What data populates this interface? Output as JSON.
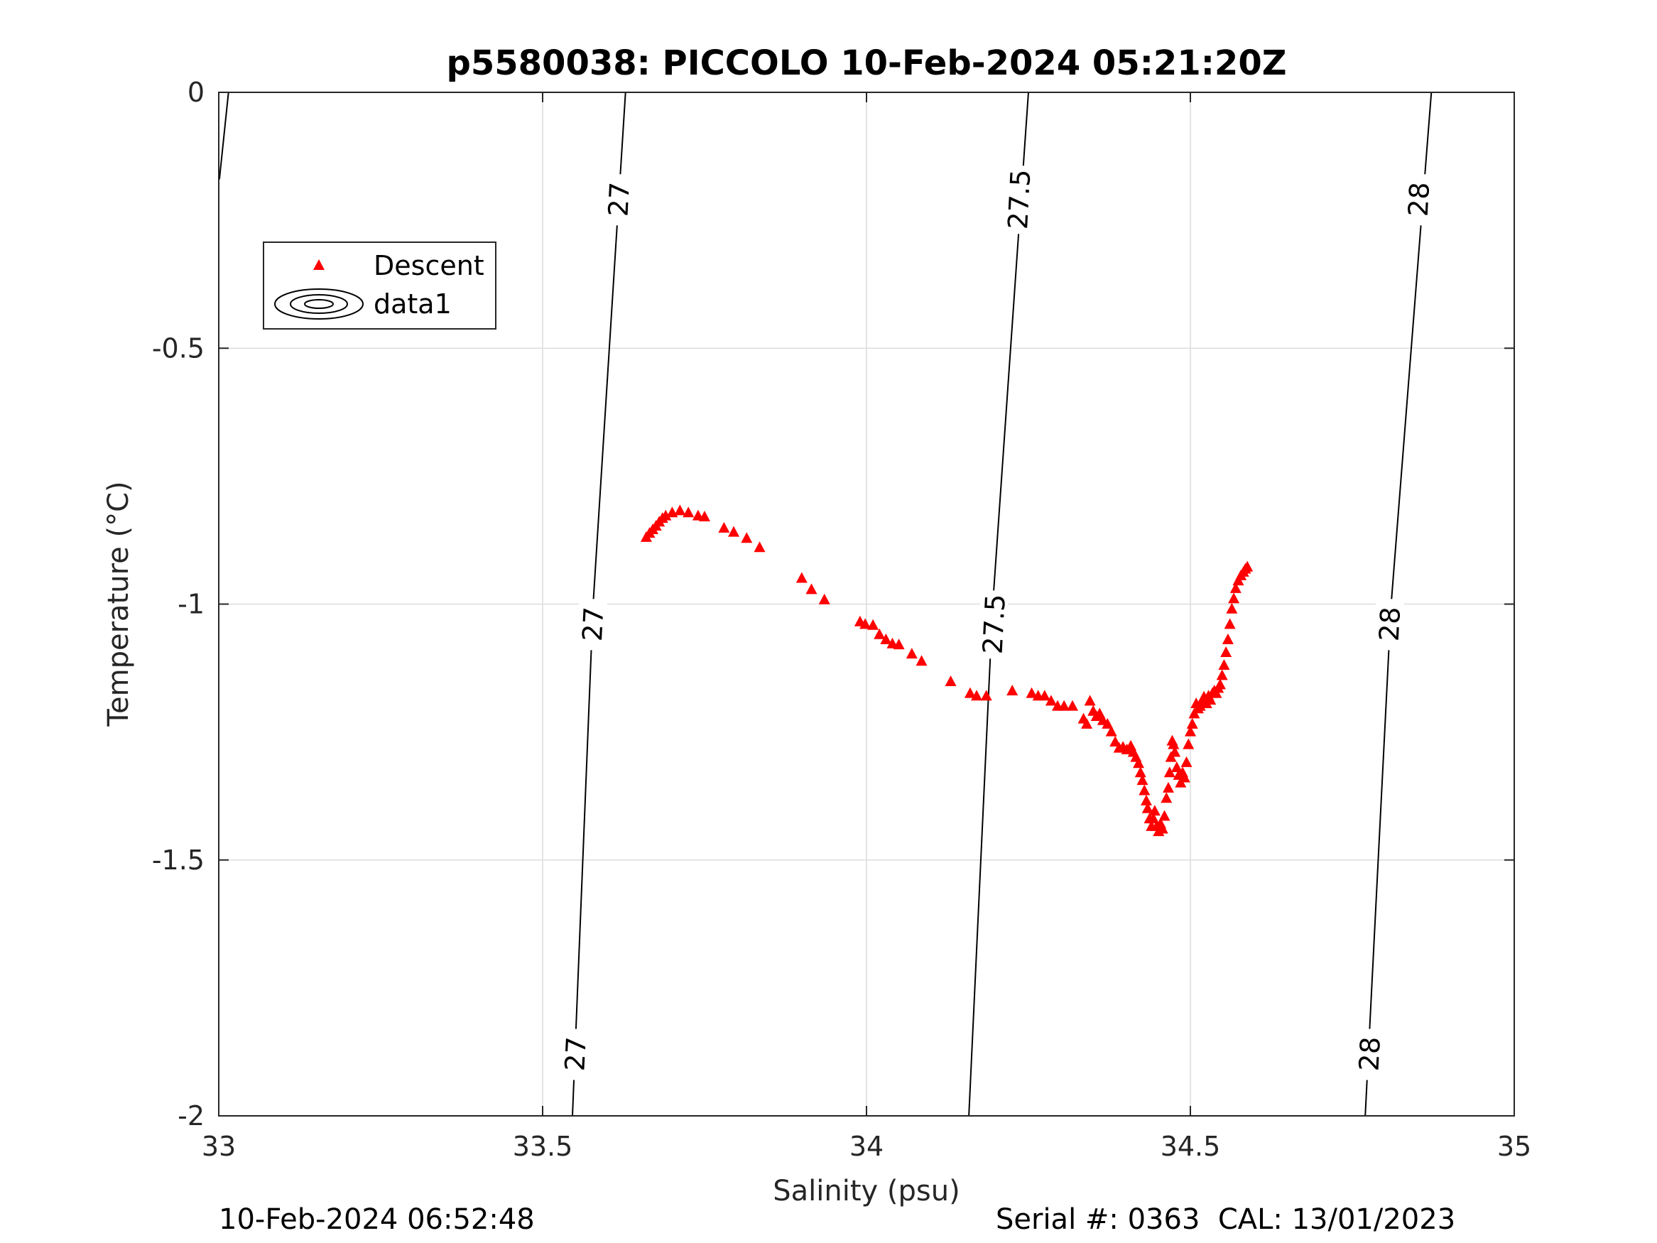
{
  "chart_data": {
    "type": "scatter",
    "title": "p5580038: PICCOLO 10-Feb-2024 05:21:20Z",
    "xlabel": "Salinity (psu)",
    "ylabel": "Temperature (°C)",
    "xlim": [
      33,
      35
    ],
    "ylim": [
      -2,
      0
    ],
    "xticks": [
      33,
      33.5,
      34,
      34.5,
      35
    ],
    "xtick_labels": [
      "33",
      "33.5",
      "34",
      "34.5",
      "35"
    ],
    "yticks": [
      0,
      -0.5,
      -1,
      -1.5,
      -2
    ],
    "ytick_labels": [
      "0",
      "-0.5",
      "-1",
      "-1.5",
      "-2"
    ],
    "grid": true,
    "legend": {
      "placement": "top-left",
      "entries": [
        {
          "label": "Descent",
          "marker": "triangle",
          "color": "#ff0000"
        },
        {
          "label": "data1",
          "marker": "contour-icon",
          "color": "#000000"
        }
      ]
    },
    "series": [
      {
        "name": "Descent",
        "marker": "triangle",
        "color": "#ff0000",
        "points": [
          [
            33.66,
            -0.87
          ],
          [
            33.665,
            -0.862
          ],
          [
            33.67,
            -0.855
          ],
          [
            33.675,
            -0.848
          ],
          [
            33.68,
            -0.84
          ],
          [
            33.685,
            -0.833
          ],
          [
            33.69,
            -0.828
          ],
          [
            33.7,
            -0.822
          ],
          [
            33.712,
            -0.818
          ],
          [
            33.725,
            -0.822
          ],
          [
            33.74,
            -0.828
          ],
          [
            33.75,
            -0.83
          ],
          [
            33.78,
            -0.852
          ],
          [
            33.795,
            -0.86
          ],
          [
            33.815,
            -0.872
          ],
          [
            33.835,
            -0.89
          ],
          [
            33.9,
            -0.95
          ],
          [
            33.915,
            -0.972
          ],
          [
            33.935,
            -0.992
          ],
          [
            33.99,
            -1.035
          ],
          [
            33.998,
            -1.04
          ],
          [
            34.01,
            -1.042
          ],
          [
            34.02,
            -1.06
          ],
          [
            34.03,
            -1.07
          ],
          [
            34.04,
            -1.078
          ],
          [
            34.05,
            -1.08
          ],
          [
            34.07,
            -1.098
          ],
          [
            34.085,
            -1.112
          ],
          [
            34.13,
            -1.152
          ],
          [
            34.16,
            -1.175
          ],
          [
            34.17,
            -1.18
          ],
          [
            34.185,
            -1.18
          ],
          [
            34.225,
            -1.17
          ],
          [
            34.255,
            -1.175
          ],
          [
            34.265,
            -1.18
          ],
          [
            34.275,
            -1.18
          ],
          [
            34.285,
            -1.19
          ],
          [
            34.295,
            -1.2
          ],
          [
            34.305,
            -1.2
          ],
          [
            34.318,
            -1.2
          ],
          [
            34.335,
            -1.225
          ],
          [
            34.34,
            -1.235
          ],
          [
            34.345,
            -1.19
          ],
          [
            34.35,
            -1.21
          ],
          [
            34.355,
            -1.22
          ],
          [
            34.36,
            -1.215
          ],
          [
            34.365,
            -1.228
          ],
          [
            34.372,
            -1.235
          ],
          [
            34.378,
            -1.25
          ],
          [
            34.384,
            -1.27
          ],
          [
            34.39,
            -1.282
          ],
          [
            34.396,
            -1.28
          ],
          [
            34.402,
            -1.285
          ],
          [
            34.408,
            -1.278
          ],
          [
            34.412,
            -1.29
          ],
          [
            34.416,
            -1.3
          ],
          [
            34.42,
            -1.312
          ],
          [
            34.423,
            -1.33
          ],
          [
            34.426,
            -1.345
          ],
          [
            34.429,
            -1.365
          ],
          [
            34.432,
            -1.385
          ],
          [
            34.434,
            -1.4
          ],
          [
            34.437,
            -1.42
          ],
          [
            34.44,
            -1.435
          ],
          [
            34.443,
            -1.42
          ],
          [
            34.445,
            -1.405
          ],
          [
            34.448,
            -1.435
          ],
          [
            34.451,
            -1.445
          ],
          [
            34.454,
            -1.43
          ],
          [
            34.457,
            -1.44
          ],
          [
            34.46,
            -1.415
          ],
          [
            34.463,
            -1.38
          ],
          [
            34.466,
            -1.36
          ],
          [
            34.468,
            -1.33
          ],
          [
            34.47,
            -1.3
          ],
          [
            34.472,
            -1.268
          ],
          [
            34.474,
            -1.275
          ],
          [
            34.476,
            -1.29
          ],
          [
            34.479,
            -1.32
          ],
          [
            34.482,
            -1.335
          ],
          [
            34.485,
            -1.35
          ],
          [
            34.488,
            -1.33
          ],
          [
            34.491,
            -1.34
          ],
          [
            34.494,
            -1.31
          ],
          [
            34.497,
            -1.275
          ],
          [
            34.5,
            -1.25
          ],
          [
            34.503,
            -1.235
          ],
          [
            34.506,
            -1.215
          ],
          [
            34.509,
            -1.195
          ],
          [
            34.512,
            -1.205
          ],
          [
            34.515,
            -1.2
          ],
          [
            34.518,
            -1.19
          ],
          [
            34.521,
            -1.182
          ],
          [
            34.525,
            -1.195
          ],
          [
            34.528,
            -1.18
          ],
          [
            34.531,
            -1.188
          ],
          [
            34.534,
            -1.175
          ],
          [
            34.537,
            -1.17
          ],
          [
            34.54,
            -1.175
          ],
          [
            34.543,
            -1.165
          ],
          [
            34.546,
            -1.158
          ],
          [
            34.549,
            -1.14
          ],
          [
            34.552,
            -1.12
          ],
          [
            34.555,
            -1.095
          ],
          [
            34.558,
            -1.07
          ],
          [
            34.561,
            -1.04
          ],
          [
            34.564,
            -1.01
          ],
          [
            34.567,
            -0.99
          ],
          [
            34.57,
            -0.97
          ],
          [
            34.574,
            -0.955
          ],
          [
            34.578,
            -0.945
          ],
          [
            34.582,
            -0.938
          ],
          [
            34.585,
            -0.932
          ],
          [
            34.588,
            -0.928
          ]
        ]
      }
    ],
    "contours": [
      {
        "label": "27",
        "points": [
          [
            33.001,
            -0.17
          ],
          [
            33.015,
            0.0
          ]
        ],
        "labels": []
      },
      {
        "label": "27",
        "points": [
          [
            33.546,
            -2.0
          ],
          [
            33.578,
            -1.0
          ],
          [
            33.628,
            0.0
          ]
        ],
        "labels": [
          {
            "at": [
              33.551,
              -1.88
            ],
            "text": "27"
          },
          {
            "at": [
              33.578,
              -1.04
            ],
            "text": "27"
          },
          {
            "at": [
              33.618,
              -0.21
            ],
            "text": "27"
          }
        ]
      },
      {
        "label": "27.5",
        "points": [
          [
            34.158,
            -2.0
          ],
          [
            34.195,
            -1.0
          ],
          [
            34.25,
            0.0
          ]
        ],
        "labels": [
          {
            "at": [
              34.197,
              -1.04
            ],
            "text": "27.5"
          },
          {
            "at": [
              34.236,
              -0.21
            ],
            "text": "27.5"
          }
        ]
      },
      {
        "label": "28",
        "points": [
          [
            34.77,
            -2.0
          ],
          [
            34.81,
            -1.0
          ],
          [
            34.872,
            0.0
          ]
        ],
        "labels": [
          {
            "at": [
              34.777,
              -1.88
            ],
            "text": "28"
          },
          {
            "at": [
              34.808,
              -1.04
            ],
            "text": "28"
          },
          {
            "at": [
              34.853,
              -0.21
            ],
            "text": "28"
          }
        ]
      }
    ]
  },
  "footer": {
    "left": "10-Feb-2024 06:52:48",
    "right": "Serial #: 0363  CAL: 13/01/2023"
  }
}
